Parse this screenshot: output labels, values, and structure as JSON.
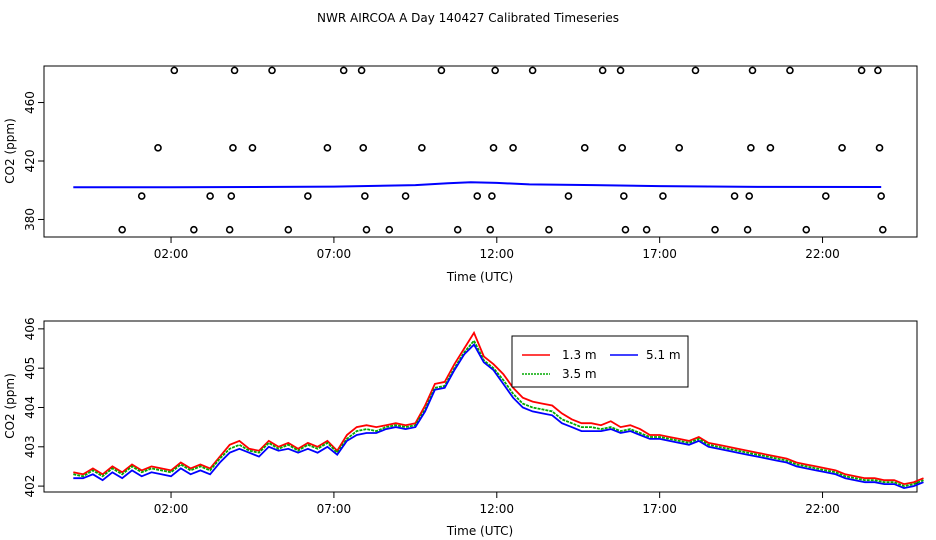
{
  "title": "NWR AIRCOA A  Day 140427  Calibrated Timeseries",
  "chart_data": [
    {
      "type": "scatter",
      "title": "NWR AIRCOA A  Day 140427  Calibrated Timeseries",
      "xlabel": "Time (UTC)",
      "ylabel": "CO2 (ppm)",
      "xlim": [
        -1.9,
        24.9
      ],
      "ylim": [
        368,
        485
      ],
      "x_ticks": [
        2,
        7,
        12,
        17,
        22
      ],
      "x_tick_labels": [
        "02:00",
        "07:00",
        "12:00",
        "17:00",
        "22:00"
      ],
      "y_ticks": [
        380,
        420,
        460
      ],
      "y_tick_labels": [
        "380",
        "420",
        "460"
      ],
      "open_circle_points": [
        {
          "x": 0.5,
          "y": 373
        },
        {
          "x": 1.1,
          "y": 396
        },
        {
          "x": 1.6,
          "y": 429
        },
        {
          "x": 2.1,
          "y": 482
        },
        {
          "x": 2.7,
          "y": 373
        },
        {
          "x": 3.2,
          "y": 396
        },
        {
          "x": 3.8,
          "y": 373
        },
        {
          "x": 3.85,
          "y": 396
        },
        {
          "x": 3.9,
          "y": 429
        },
        {
          "x": 3.95,
          "y": 482
        },
        {
          "x": 4.5,
          "y": 429
        },
        {
          "x": 5.1,
          "y": 482
        },
        {
          "x": 5.6,
          "y": 373
        },
        {
          "x": 6.2,
          "y": 396
        },
        {
          "x": 6.8,
          "y": 429
        },
        {
          "x": 7.3,
          "y": 482
        },
        {
          "x": 7.85,
          "y": 482
        },
        {
          "x": 7.9,
          "y": 429
        },
        {
          "x": 7.95,
          "y": 396
        },
        {
          "x": 8.0,
          "y": 373
        },
        {
          "x": 8.7,
          "y": 373
        },
        {
          "x": 9.2,
          "y": 396
        },
        {
          "x": 9.7,
          "y": 429
        },
        {
          "x": 10.3,
          "y": 482
        },
        {
          "x": 10.8,
          "y": 373
        },
        {
          "x": 11.4,
          "y": 396
        },
        {
          "x": 11.8,
          "y": 373
        },
        {
          "x": 11.85,
          "y": 396
        },
        {
          "x": 11.9,
          "y": 429
        },
        {
          "x": 11.95,
          "y": 482
        },
        {
          "x": 12.5,
          "y": 429
        },
        {
          "x": 13.1,
          "y": 482
        },
        {
          "x": 13.6,
          "y": 373
        },
        {
          "x": 14.2,
          "y": 396
        },
        {
          "x": 14.7,
          "y": 429
        },
        {
          "x": 15.25,
          "y": 482
        },
        {
          "x": 15.8,
          "y": 482
        },
        {
          "x": 15.85,
          "y": 429
        },
        {
          "x": 15.9,
          "y": 396
        },
        {
          "x": 15.95,
          "y": 373
        },
        {
          "x": 16.6,
          "y": 373
        },
        {
          "x": 17.1,
          "y": 396
        },
        {
          "x": 17.6,
          "y": 429
        },
        {
          "x": 18.1,
          "y": 482
        },
        {
          "x": 18.7,
          "y": 373
        },
        {
          "x": 19.3,
          "y": 396
        },
        {
          "x": 19.7,
          "y": 373
        },
        {
          "x": 19.75,
          "y": 396
        },
        {
          "x": 19.8,
          "y": 429
        },
        {
          "x": 19.85,
          "y": 482
        },
        {
          "x": 20.4,
          "y": 429
        },
        {
          "x": 21.0,
          "y": 482
        },
        {
          "x": 21.5,
          "y": 373
        },
        {
          "x": 22.1,
          "y": 396
        },
        {
          "x": 22.6,
          "y": 429
        },
        {
          "x": 23.2,
          "y": 482
        },
        {
          "x": 23.7,
          "y": 482
        },
        {
          "x": 23.75,
          "y": 429
        },
        {
          "x": 23.8,
          "y": 396
        },
        {
          "x": 23.85,
          "y": 373
        }
      ],
      "baseline_line": {
        "color": "#0000ff",
        "x": [
          -1.0,
          2.0,
          7.0,
          9.5,
          10.5,
          11.2,
          12.0,
          13.0,
          15.0,
          17.0,
          20.0,
          23.8
        ],
        "y": [
          402,
          402,
          402.5,
          403.5,
          404.8,
          405.5,
          405,
          404,
          403.5,
          402.8,
          402.3,
          402.2
        ]
      }
    },
    {
      "type": "line",
      "xlabel": "Time (UTC)",
      "ylabel": "CO2 (ppm)",
      "xlim": [
        -1.9,
        24.9
      ],
      "ylim": [
        401.85,
        406.2
      ],
      "x_ticks": [
        2,
        7,
        12,
        17,
        22
      ],
      "x_tick_labels": [
        "02:00",
        "07:00",
        "12:00",
        "17:00",
        "22:00"
      ],
      "y_ticks": [
        402,
        403,
        404,
        405,
        406
      ],
      "y_tick_labels": [
        "402",
        "403",
        "404",
        "405",
        "406"
      ],
      "legend": {
        "position": "top-right-center",
        "entries": [
          "1.3 m",
          "5.1 m",
          "3.5 m"
        ]
      },
      "x": [
        -1.9,
        -1.6,
        -1.3,
        -1.0,
        -0.7,
        -0.4,
        -0.1,
        0.2,
        0.5,
        0.8,
        1.1,
        1.4,
        1.7,
        2.0,
        2.3,
        2.6,
        2.9,
        3.2,
        3.5,
        3.8,
        4.1,
        4.4,
        4.7,
        5.0,
        5.3,
        5.6,
        5.9,
        6.2,
        6.5,
        6.8,
        7.1,
        7.4,
        7.7,
        8.0,
        8.3,
        8.6,
        8.9,
        9.2,
        9.5,
        9.8,
        10.1,
        10.4,
        10.7,
        11.0,
        11.3,
        11.6,
        11.9,
        12.2,
        12.5,
        12.8,
        13.1,
        13.4,
        13.7,
        14.0,
        14.3,
        14.6,
        14.9,
        15.2,
        15.5,
        15.8,
        16.1,
        16.4,
        16.7,
        17.0,
        17.3,
        17.6,
        17.9,
        18.2,
        18.5,
        18.8,
        19.1,
        19.4,
        19.7,
        20.0,
        20.3,
        20.6,
        20.9,
        21.2,
        21.5,
        21.8,
        22.1,
        22.4,
        22.7,
        23.0,
        23.3,
        23.6,
        23.9,
        24.2
      ],
      "series": [
        {
          "name": "1.3 m",
          "color": "#ff0000",
          "values": [
            402.35,
            402.3,
            402.45,
            402.3,
            402.5,
            402.35,
            402.55,
            402.4,
            402.5,
            402.45,
            402.4,
            402.6,
            402.45,
            402.55,
            402.45,
            402.75,
            403.05,
            403.15,
            402.95,
            402.9,
            403.15,
            403.0,
            403.1,
            402.95,
            403.1,
            403.0,
            403.15,
            402.9,
            403.3,
            403.5,
            403.55,
            403.5,
            403.55,
            403.6,
            403.55,
            403.6,
            404.05,
            404.6,
            404.65,
            405.1,
            405.5,
            405.9,
            405.3,
            405.1,
            404.85,
            404.5,
            404.25,
            404.15,
            404.1,
            404.05,
            403.85,
            403.7,
            403.6,
            403.6,
            403.55,
            403.65,
            403.5,
            403.55,
            403.45,
            403.3,
            403.3,
            403.25,
            403.2,
            403.15,
            403.25,
            403.1,
            403.05,
            403.0,
            402.95,
            402.9,
            402.85,
            402.8,
            402.75,
            402.7,
            402.6,
            402.55,
            402.5,
            402.45,
            402.4,
            402.3,
            402.25,
            402.2,
            402.2,
            402.15,
            402.15,
            402.05,
            402.1,
            402.2
          ]
        },
        {
          "name": "3.5 m",
          "color": "#00aa00",
          "values": [
            402.3,
            402.25,
            402.4,
            402.25,
            402.45,
            402.3,
            402.5,
            402.35,
            402.45,
            402.4,
            402.35,
            402.55,
            402.4,
            402.5,
            402.4,
            402.7,
            402.95,
            403.05,
            402.9,
            402.85,
            403.1,
            402.95,
            403.05,
            402.9,
            403.05,
            402.95,
            403.1,
            402.85,
            403.2,
            403.4,
            403.45,
            403.4,
            403.5,
            403.55,
            403.5,
            403.55,
            403.95,
            404.5,
            404.55,
            405.0,
            405.4,
            405.7,
            405.2,
            405.0,
            404.7,
            404.35,
            404.1,
            404.0,
            403.95,
            403.9,
            403.7,
            403.6,
            403.5,
            403.5,
            403.45,
            403.5,
            403.4,
            403.45,
            403.35,
            403.25,
            403.25,
            403.2,
            403.15,
            403.1,
            403.2,
            403.05,
            403.0,
            402.95,
            402.9,
            402.85,
            402.8,
            402.75,
            402.7,
            402.65,
            402.55,
            402.5,
            402.45,
            402.4,
            402.35,
            402.25,
            402.2,
            402.15,
            402.15,
            402.1,
            402.1,
            402.0,
            402.05,
            402.15
          ]
        },
        {
          "name": "5.1 m",
          "color": "#0000ff",
          "values": [
            402.2,
            402.2,
            402.3,
            402.15,
            402.35,
            402.2,
            402.4,
            402.25,
            402.35,
            402.3,
            402.25,
            402.45,
            402.3,
            402.4,
            402.3,
            402.6,
            402.85,
            402.95,
            402.85,
            402.75,
            403.0,
            402.9,
            402.95,
            402.85,
            402.95,
            402.85,
            403.0,
            402.8,
            403.15,
            403.3,
            403.35,
            403.35,
            403.45,
            403.5,
            403.45,
            403.5,
            403.9,
            404.45,
            404.5,
            404.95,
            405.35,
            405.6,
            405.15,
            404.95,
            404.6,
            404.25,
            404.0,
            403.9,
            403.85,
            403.8,
            403.6,
            403.5,
            403.4,
            403.4,
            403.4,
            403.45,
            403.35,
            403.4,
            403.3,
            403.2,
            403.2,
            403.15,
            403.1,
            403.05,
            403.15,
            403.0,
            402.95,
            402.9,
            402.85,
            402.8,
            402.75,
            402.7,
            402.65,
            402.6,
            402.5,
            402.45,
            402.4,
            402.35,
            402.3,
            402.2,
            402.15,
            402.1,
            402.1,
            402.05,
            402.05,
            401.95,
            402.0,
            402.1
          ]
        }
      ]
    }
  ]
}
